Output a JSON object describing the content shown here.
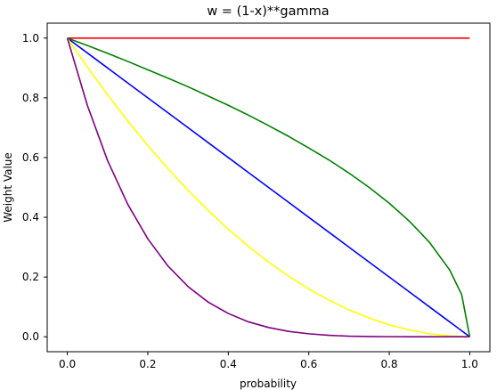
{
  "chart_data": {
    "type": "line",
    "title": "w = (1-x)**gamma",
    "xlabel": "probability",
    "ylabel": "Weight Value",
    "xlim": [
      -0.05,
      1.05
    ],
    "ylim": [
      -0.05,
      1.05
    ],
    "xticks": [
      0.0,
      0.2,
      0.4,
      0.6,
      0.8,
      1.0
    ],
    "yticks": [
      0.0,
      0.2,
      0.4,
      0.6,
      0.8,
      1.0
    ],
    "xtick_labels": [
      "0.0",
      "0.2",
      "0.4",
      "0.6",
      "0.8",
      "1.0"
    ],
    "ytick_labels": [
      "0.0",
      "0.2",
      "0.4",
      "0.6",
      "0.8",
      "1.0"
    ],
    "grid": false,
    "x": [
      0.0,
      0.05,
      0.1,
      0.15,
      0.2,
      0.25,
      0.3,
      0.35,
      0.4,
      0.45,
      0.5,
      0.55,
      0.6,
      0.65,
      0.7,
      0.75,
      0.8,
      0.85,
      0.9,
      0.95,
      0.98,
      1.0
    ],
    "series": [
      {
        "color": "#ff0000",
        "values": [
          1,
          1,
          1,
          1,
          1,
          1,
          1,
          1,
          1,
          1,
          1,
          1,
          1,
          1,
          1,
          1,
          1,
          1,
          1,
          1,
          1,
          1
        ]
      },
      {
        "color": "#008000",
        "values": [
          1.0,
          0.975,
          0.949,
          0.922,
          0.894,
          0.866,
          0.837,
          0.806,
          0.775,
          0.742,
          0.707,
          0.671,
          0.632,
          0.592,
          0.548,
          0.5,
          0.447,
          0.387,
          0.316,
          0.224,
          0.141,
          0.0
        ]
      },
      {
        "color": "#0000ff",
        "values": [
          1.0,
          0.95,
          0.9,
          0.85,
          0.8,
          0.75,
          0.7,
          0.65,
          0.6,
          0.55,
          0.5,
          0.45,
          0.4,
          0.35,
          0.3,
          0.25,
          0.2,
          0.15,
          0.1,
          0.05,
          0.02,
          0.0
        ]
      },
      {
        "color": "#ffff00",
        "values": [
          1.0,
          0.903,
          0.81,
          0.723,
          0.64,
          0.563,
          0.49,
          0.423,
          0.36,
          0.303,
          0.25,
          0.203,
          0.16,
          0.123,
          0.09,
          0.063,
          0.04,
          0.023,
          0.01,
          0.003,
          0.0004,
          0.0
        ]
      },
      {
        "color": "#800080",
        "values": [
          1.0,
          0.774,
          0.59,
          0.444,
          0.328,
          0.237,
          0.168,
          0.116,
          0.078,
          0.05,
          0.031,
          0.018,
          0.01,
          0.005,
          0.002,
          0.001,
          0.0003,
          0.0001,
          0.0,
          0.0,
          0.0,
          0.0
        ]
      }
    ]
  }
}
